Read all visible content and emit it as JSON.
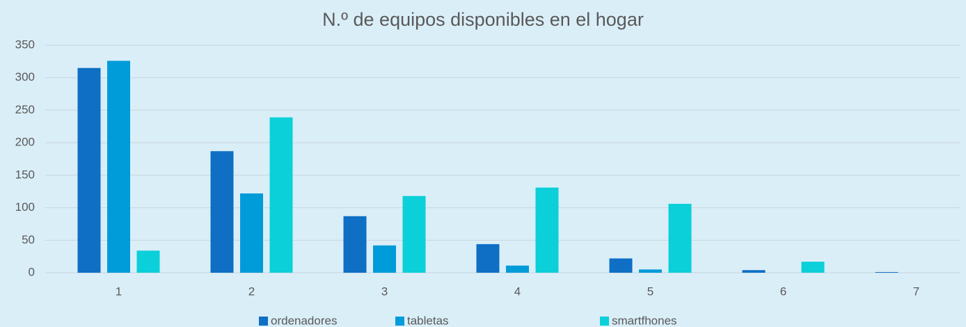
{
  "chart_data": {
    "type": "bar",
    "title": "N.º de equipos disponibles en el hogar",
    "categories": [
      "1",
      "2",
      "3",
      "4",
      "5",
      "6",
      "7"
    ],
    "series": [
      {
        "name": "ordenadores",
        "color": "#0e6fc5",
        "values": [
          315,
          187,
          87,
          44,
          22,
          4,
          1
        ]
      },
      {
        "name": "tabletas",
        "color": "#009bd9",
        "values": [
          326,
          122,
          42,
          11,
          5,
          0,
          0
        ]
      },
      {
        "name": "smartfhones",
        "color": "#0bd0d9",
        "values": [
          34,
          239,
          118,
          131,
          106,
          17,
          0
        ]
      }
    ],
    "ylim": [
      0,
      350
    ],
    "yticks": [
      0,
      50,
      100,
      150,
      200,
      250,
      300,
      350
    ],
    "grid": true,
    "legend": "bottom"
  }
}
